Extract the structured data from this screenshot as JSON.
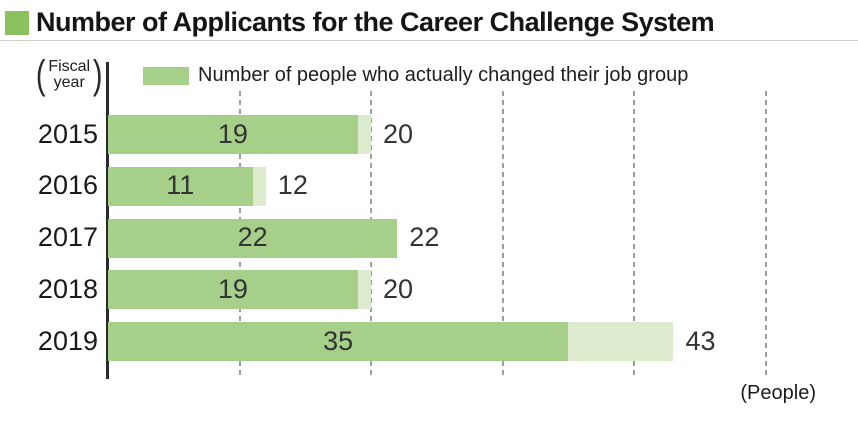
{
  "title": "Number of Applicants for the Career Challenge System",
  "fiscal_label": {
    "open_paren": "(",
    "line1": "Fiscal",
    "line2": "year",
    "close_paren": ")"
  },
  "legend": {
    "label": "Number of people who actually changed their job group"
  },
  "unit_label": "(People)",
  "colors": {
    "accent_square": "#8bc15e",
    "bar_changed": "#a6cf8a",
    "bar_total": "#dcebcd",
    "gridline": "#9e9e9e",
    "axis": "#2b2b2b"
  },
  "chart_data": {
    "type": "bar",
    "orientation": "horizontal",
    "title": "Number of Applicants for the Career Challenge System",
    "categories": [
      "2015",
      "2016",
      "2017",
      "2018",
      "2019"
    ],
    "series": [
      {
        "name": "Number of people who actually changed their job group",
        "values": [
          19,
          11,
          22,
          19,
          35
        ]
      },
      {
        "name": "Number of applicants",
        "values": [
          20,
          12,
          22,
          20,
          43
        ]
      }
    ],
    "xlim": [
      0,
      57
    ],
    "gridline_values": [
      10,
      20,
      30,
      40,
      50
    ],
    "grid": true,
    "legend_position": "top",
    "value_labels": true,
    "xlabel": "(People)",
    "ylabel": "(Fiscal year)"
  }
}
